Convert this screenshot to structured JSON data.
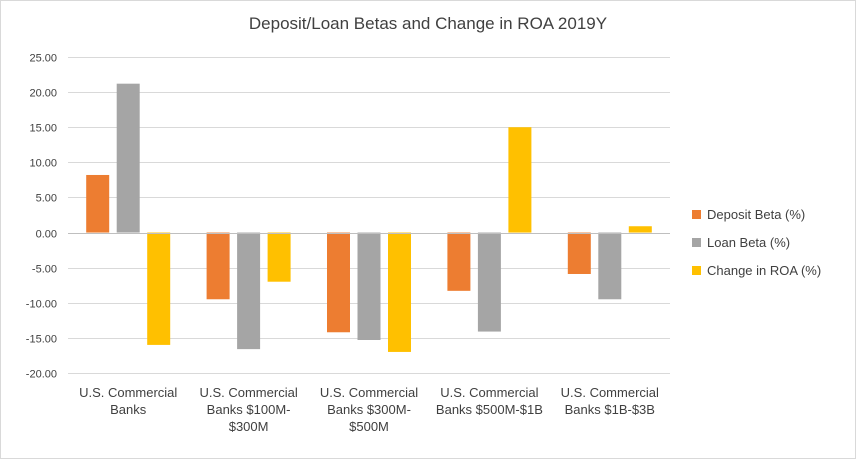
{
  "chart_data": {
    "type": "bar",
    "title": "Deposit/Loan Betas and Change in ROA 2019Y",
    "xlabel": "",
    "ylabel": "",
    "ylim": [
      -20,
      25
    ],
    "yticks": [
      "25.00",
      "20.00",
      "15.00",
      "10.00",
      "5.00",
      "0.00",
      "-5.00",
      "-10.00",
      "-15.00",
      "-20.00"
    ],
    "ytick_values": [
      25,
      20,
      15,
      10,
      5,
      0,
      -5,
      -10,
      -15,
      -20
    ],
    "grid": true,
    "legend_position": "right",
    "categories": [
      [
        "U.S. Commercial",
        "Banks"
      ],
      [
        "U.S. Commercial",
        "Banks $100M-",
        "$300M"
      ],
      [
        "U.S. Commercial",
        "Banks $300M-",
        "$500M"
      ],
      [
        "U.S. Commercial",
        "Banks $500M-$1B"
      ],
      [
        "U.S. Commercial",
        "Banks $1B-$3B"
      ]
    ],
    "series": [
      {
        "name": "Deposit Beta (%)",
        "color": "#ED7D31",
        "values": [
          8.2,
          -9.5,
          -14.2,
          -8.3,
          -5.9
        ]
      },
      {
        "name": "Loan Beta (%)",
        "color": "#A5A5A5",
        "values": [
          21.2,
          -16.6,
          -15.3,
          -14.1,
          -9.5
        ]
      },
      {
        "name": "Change in ROA (%)",
        "color": "#FFC000",
        "values": [
          -16.0,
          -7.0,
          -17.0,
          15.0,
          0.9
        ]
      }
    ]
  }
}
